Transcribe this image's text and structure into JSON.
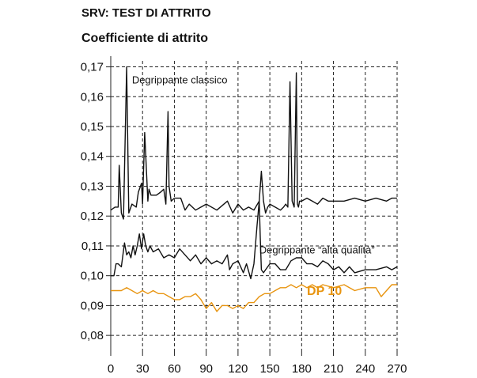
{
  "title": "SRV: TEST DI ATTRITO",
  "chart_data": {
    "type": "line",
    "title": "SRV: TEST DI ATTRITO",
    "ylabel": "Coefficiente di attrito",
    "xlabel": "",
    "xlim": [
      0,
      270
    ],
    "ylim": [
      0.075,
      0.172
    ],
    "x_ticks": [
      "0",
      "30",
      "60",
      "90",
      "120",
      "150",
      "180",
      "210",
      "240",
      "270"
    ],
    "y_ticks": [
      "0,08",
      "0,09",
      "0,10",
      "0,11",
      "0,12",
      "0,13",
      "0,14",
      "0,15",
      "0,16",
      "0,17"
    ],
    "grid": true,
    "series": [
      {
        "name": "Degrippante classico",
        "color": "#111111",
        "x": [
          0,
          4,
          7,
          8,
          10,
          12,
          15,
          17,
          20,
          24,
          26,
          29,
          30,
          32,
          35,
          36,
          38,
          43,
          47,
          50,
          52,
          54,
          55,
          57,
          60,
          64,
          66,
          70,
          74,
          80,
          90,
          100,
          110,
          115,
          120,
          125,
          130,
          135,
          140,
          142,
          144,
          146,
          148,
          150,
          155,
          160,
          163,
          165,
          167,
          169,
          171,
          172,
          173,
          175,
          176,
          177,
          178,
          180,
          185,
          190,
          195,
          200,
          205,
          210,
          220,
          230,
          240,
          250,
          260,
          265,
          270
        ],
        "y": [
          0.122,
          0.123,
          0.123,
          0.137,
          0.121,
          0.119,
          0.17,
          0.121,
          0.124,
          0.123,
          0.128,
          0.131,
          0.124,
          0.148,
          0.125,
          0.129,
          0.127,
          0.127,
          0.128,
          0.129,
          0.124,
          0.155,
          0.13,
          0.125,
          0.126,
          0.126,
          0.126,
          0.122,
          0.124,
          0.122,
          0.124,
          0.122,
          0.125,
          0.121,
          0.124,
          0.122,
          0.123,
          0.122,
          0.125,
          0.135,
          0.125,
          0.121,
          0.123,
          0.124,
          0.123,
          0.122,
          0.123,
          0.124,
          0.123,
          0.165,
          0.125,
          0.124,
          0.123,
          0.168,
          0.124,
          0.123,
          0.125,
          0.125,
          0.126,
          0.125,
          0.124,
          0.126,
          0.125,
          0.125,
          0.125,
          0.126,
          0.125,
          0.126,
          0.125,
          0.126,
          0.126
        ]
      },
      {
        "name": "Degrippante “alta qualità”",
        "color": "#111111",
        "x": [
          0,
          3,
          5,
          7,
          10,
          13,
          15,
          17,
          19,
          21,
          23,
          25,
          27,
          29,
          31,
          33,
          35,
          37,
          40,
          45,
          50,
          55,
          60,
          65,
          70,
          75,
          80,
          85,
          90,
          95,
          100,
          105,
          110,
          112,
          115,
          120,
          125,
          128,
          132,
          135,
          138,
          140,
          141,
          142,
          144,
          146,
          150,
          155,
          160,
          165,
          170,
          175,
          180,
          185,
          190,
          195,
          200,
          205,
          210,
          215,
          220,
          225,
          230,
          240,
          250,
          260,
          265,
          270
        ],
        "y": [
          0.1,
          0.1,
          0.104,
          0.104,
          0.103,
          0.111,
          0.107,
          0.108,
          0.106,
          0.11,
          0.107,
          0.11,
          0.114,
          0.109,
          0.114,
          0.11,
          0.108,
          0.11,
          0.108,
          0.109,
          0.106,
          0.107,
          0.106,
          0.109,
          0.107,
          0.105,
          0.107,
          0.104,
          0.106,
          0.104,
          0.105,
          0.104,
          0.107,
          0.102,
          0.104,
          0.105,
          0.101,
          0.104,
          0.099,
          0.104,
          0.117,
          0.125,
          0.113,
          0.102,
          0.101,
          0.102,
          0.104,
          0.104,
          0.102,
          0.102,
          0.105,
          0.106,
          0.106,
          0.104,
          0.104,
          0.103,
          0.105,
          0.104,
          0.102,
          0.103,
          0.101,
          0.103,
          0.101,
          0.102,
          0.102,
          0.103,
          0.102,
          0.103
        ]
      },
      {
        "name": "DP 10",
        "color": "#e8940f",
        "x": [
          0,
          5,
          10,
          15,
          20,
          25,
          30,
          35,
          40,
          45,
          50,
          55,
          60,
          65,
          70,
          75,
          80,
          85,
          90,
          95,
          100,
          105,
          110,
          115,
          120,
          125,
          130,
          135,
          140,
          145,
          150,
          155,
          160,
          165,
          170,
          175,
          180,
          185,
          190,
          195,
          200,
          210,
          220,
          230,
          240,
          250,
          255,
          260,
          265,
          270
        ],
        "y": [
          0.095,
          0.095,
          0.095,
          0.096,
          0.095,
          0.094,
          0.095,
          0.094,
          0.095,
          0.094,
          0.094,
          0.093,
          0.092,
          0.092,
          0.093,
          0.093,
          0.094,
          0.092,
          0.089,
          0.091,
          0.088,
          0.09,
          0.09,
          0.089,
          0.09,
          0.089,
          0.091,
          0.091,
          0.093,
          0.094,
          0.094,
          0.095,
          0.096,
          0.096,
          0.097,
          0.096,
          0.097,
          0.096,
          0.097,
          0.096,
          0.097,
          0.096,
          0.097,
          0.095,
          0.096,
          0.096,
          0.093,
          0.095,
          0.097,
          0.097
        ]
      }
    ],
    "annotations": [
      {
        "text": "Degrippante classico",
        "x": 20,
        "y": 0.1645
      },
      {
        "text": "Degrippante “alta qualità”",
        "x": 140,
        "y": 0.1075
      },
      {
        "text": "DP 10",
        "x": 185,
        "y": 0.0935
      }
    ]
  }
}
